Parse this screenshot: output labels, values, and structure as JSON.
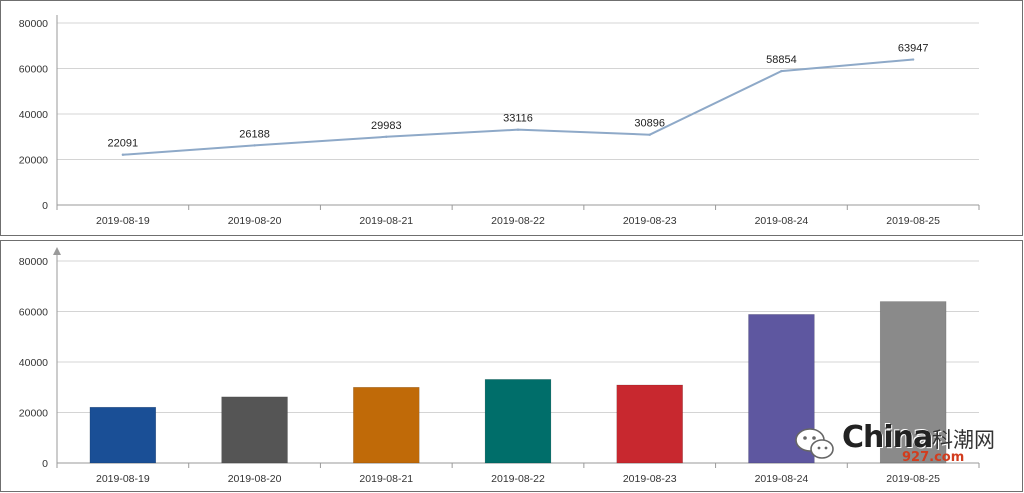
{
  "chart_data": [
    {
      "type": "line",
      "categories": [
        "2019-08-19",
        "2019-08-20",
        "2019-08-21",
        "2019-08-22",
        "2019-08-23",
        "2019-08-24",
        "2019-08-25"
      ],
      "values": [
        22091,
        26188,
        29983,
        33116,
        30896,
        58854,
        63947
      ],
      "data_labels": [
        "22091",
        "26188",
        "29983",
        "33116",
        "30896",
        "58854",
        "63947"
      ],
      "yticks": [
        "0",
        "20000",
        "40000",
        "60000",
        "80000"
      ],
      "ylim": [
        0,
        80000
      ],
      "grid": true,
      "line_color": "#8ea9c8"
    },
    {
      "type": "bar",
      "categories": [
        "2019-08-19",
        "2019-08-20",
        "2019-08-21",
        "2019-08-22",
        "2019-08-23",
        "2019-08-24",
        "2019-08-25"
      ],
      "values": [
        22091,
        26188,
        29983,
        33116,
        30896,
        58854,
        63947
      ],
      "yticks": [
        "0",
        "20000",
        "40000",
        "60000",
        "80000"
      ],
      "ylim": [
        0,
        80000
      ],
      "grid": true,
      "bar_colors": [
        "#1a4f96",
        "#555555",
        "#c06a08",
        "#006e6a",
        "#c8282f",
        "#5e57a0",
        "#8a8a8a"
      ]
    }
  ],
  "watermark": {
    "brand": "China",
    "cn": "科潮网",
    "sub": "927.com"
  }
}
